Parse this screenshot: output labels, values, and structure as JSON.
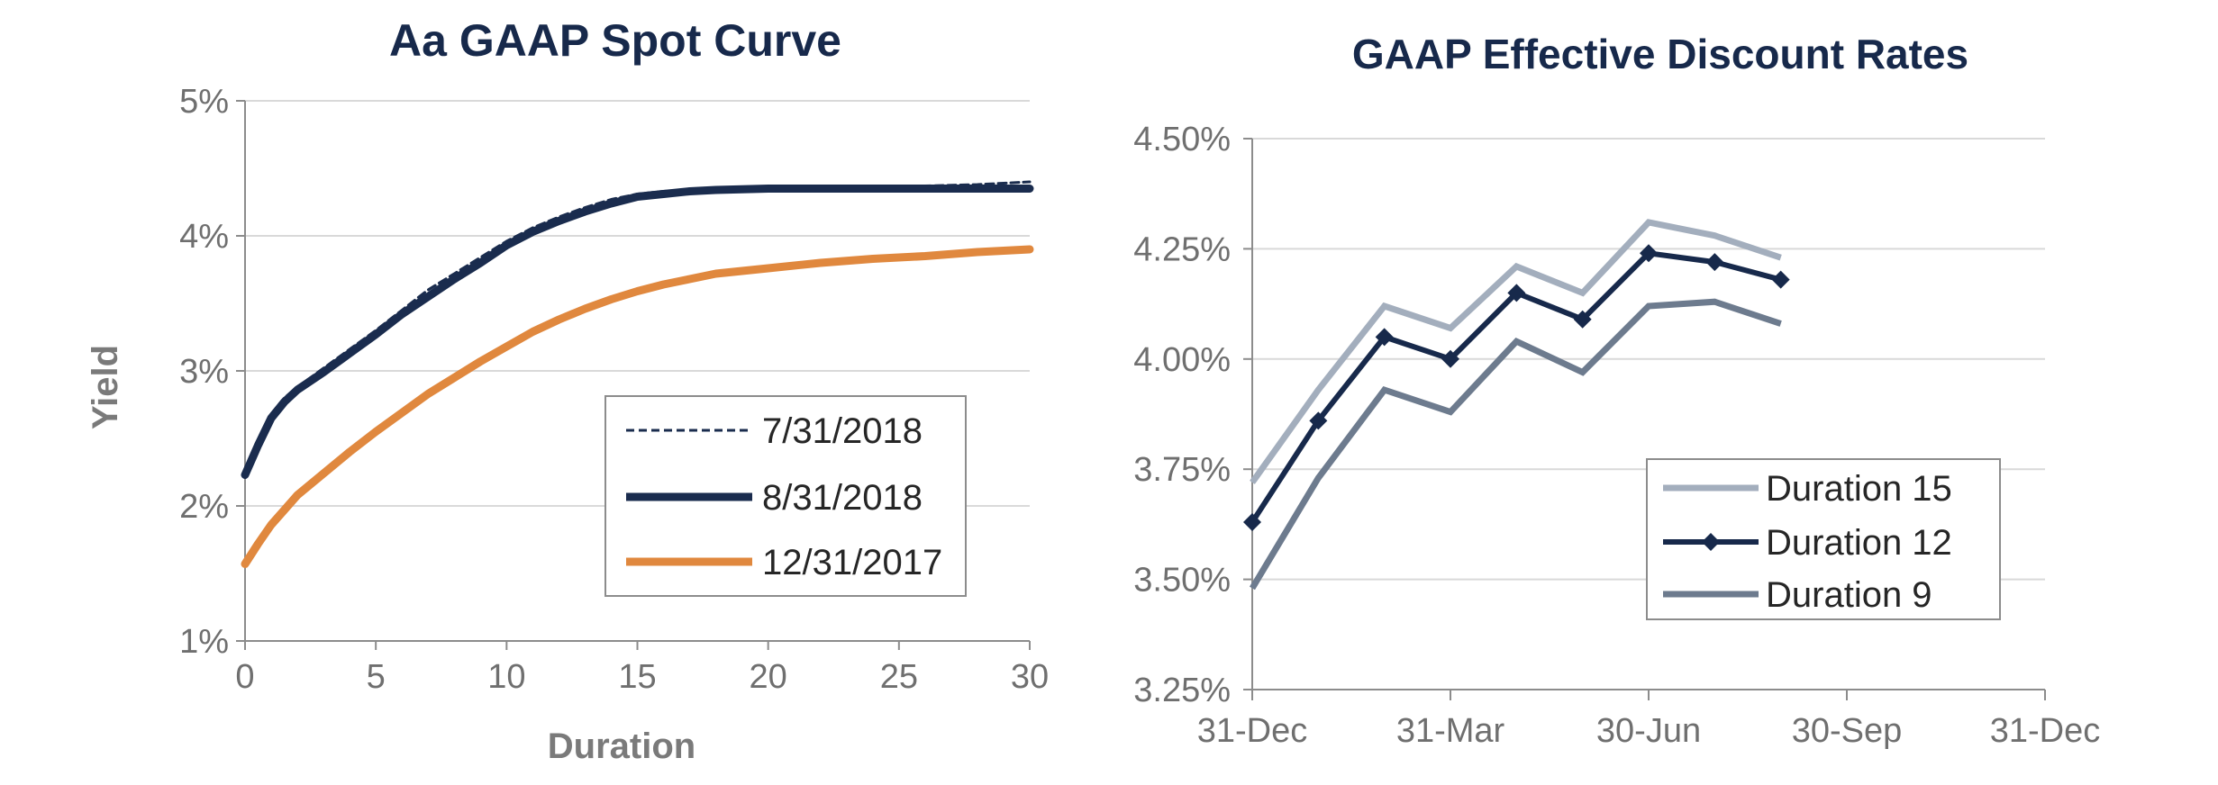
{
  "chart_data": [
    {
      "type": "line",
      "title": "Aa GAAP Spot Curve",
      "xlabel": "Duration",
      "ylabel": "Yield",
      "xlim": [
        0,
        30
      ],
      "ylim": [
        1,
        5
      ],
      "x_ticks": [
        0,
        5,
        10,
        15,
        20,
        25,
        30
      ],
      "x_tick_labels": [
        "0",
        "5",
        "10",
        "15",
        "20",
        "25",
        "30"
      ],
      "y_ticks": [
        1,
        2,
        3,
        4,
        5
      ],
      "y_tick_labels": [
        "1%",
        "2%",
        "3%",
        "4%",
        "5%"
      ],
      "grid": "horizontal",
      "legend_position": "bottom-right",
      "series": [
        {
          "name": "7/31/2018",
          "style": "dashed-thin",
          "color": "#1a2c4e",
          "x": [
            0,
            0.5,
            1,
            1.5,
            2,
            3,
            4,
            5,
            6,
            7,
            8,
            9,
            10,
            11,
            12,
            13,
            14,
            15,
            16,
            17,
            18,
            20,
            22,
            24,
            26,
            28,
            30
          ],
          "y": [
            2.25,
            2.48,
            2.68,
            2.8,
            2.88,
            3.02,
            3.16,
            3.3,
            3.45,
            3.6,
            3.72,
            3.84,
            3.96,
            4.06,
            4.14,
            4.21,
            4.27,
            4.31,
            4.33,
            4.34,
            4.35,
            4.35,
            4.35,
            4.36,
            4.37,
            4.38,
            4.4
          ]
        },
        {
          "name": "8/31/2018",
          "style": "solid-thick",
          "color": "#1a2c4e",
          "x": [
            0,
            0.5,
            1,
            1.5,
            2,
            3,
            4,
            5,
            6,
            7,
            8,
            9,
            10,
            11,
            12,
            13,
            14,
            15,
            16,
            17,
            18,
            20,
            22,
            24,
            26,
            28,
            30
          ],
          "y": [
            2.23,
            2.45,
            2.65,
            2.77,
            2.86,
            2.99,
            3.13,
            3.27,
            3.42,
            3.55,
            3.68,
            3.8,
            3.93,
            4.03,
            4.11,
            4.18,
            4.24,
            4.29,
            4.31,
            4.33,
            4.34,
            4.35,
            4.35,
            4.35,
            4.35,
            4.35,
            4.35
          ]
        },
        {
          "name": "12/31/2017",
          "style": "solid-thick",
          "color": "#e0883e",
          "x": [
            0,
            0.5,
            1,
            1.5,
            2,
            3,
            4,
            5,
            6,
            7,
            8,
            9,
            10,
            11,
            12,
            13,
            14,
            15,
            16,
            17,
            18,
            20,
            22,
            24,
            26,
            28,
            30
          ],
          "y": [
            1.57,
            1.72,
            1.86,
            1.97,
            2.08,
            2.24,
            2.4,
            2.55,
            2.69,
            2.83,
            2.95,
            3.07,
            3.18,
            3.29,
            3.38,
            3.46,
            3.53,
            3.59,
            3.64,
            3.68,
            3.72,
            3.76,
            3.8,
            3.83,
            3.85,
            3.88,
            3.9
          ]
        }
      ]
    },
    {
      "type": "line",
      "title": "GAAP Effective Discount Rates",
      "xlabel": "",
      "ylabel": "",
      "x_tick_labels": [
        "31-Dec",
        "31-Mar",
        "30-Jun",
        "30-Sep",
        "31-Dec"
      ],
      "x_ticks": [
        0,
        3,
        6,
        9,
        12
      ],
      "xlim": [
        0,
        12
      ],
      "y_ticks": [
        3.25,
        3.5,
        3.75,
        4.0,
        4.25,
        4.5
      ],
      "y_tick_labels": [
        "3.25%",
        "3.50%",
        "3.75%",
        "4.00%",
        "4.25%",
        "4.50%"
      ],
      "ylim": [
        3.25,
        4.5
      ],
      "grid": "horizontal",
      "legend_position": "bottom-right",
      "x": [
        0,
        1,
        2,
        3,
        4,
        5,
        6,
        7,
        8
      ],
      "series": [
        {
          "name": "Duration 15",
          "color": "#a3aebd",
          "marker": "none",
          "values": [
            3.72,
            3.93,
            4.12,
            4.07,
            4.21,
            4.15,
            4.31,
            4.28,
            4.23
          ]
        },
        {
          "name": "Duration 12",
          "color": "#17294b",
          "marker": "diamond",
          "values": [
            3.63,
            3.86,
            4.05,
            4.0,
            4.15,
            4.09,
            4.24,
            4.22,
            4.18
          ]
        },
        {
          "name": "Duration 9",
          "color": "#6d7b8e",
          "marker": "none",
          "values": [
            3.48,
            3.73,
            3.93,
            3.88,
            4.04,
            3.97,
            4.12,
            4.13,
            4.08
          ]
        }
      ]
    }
  ]
}
